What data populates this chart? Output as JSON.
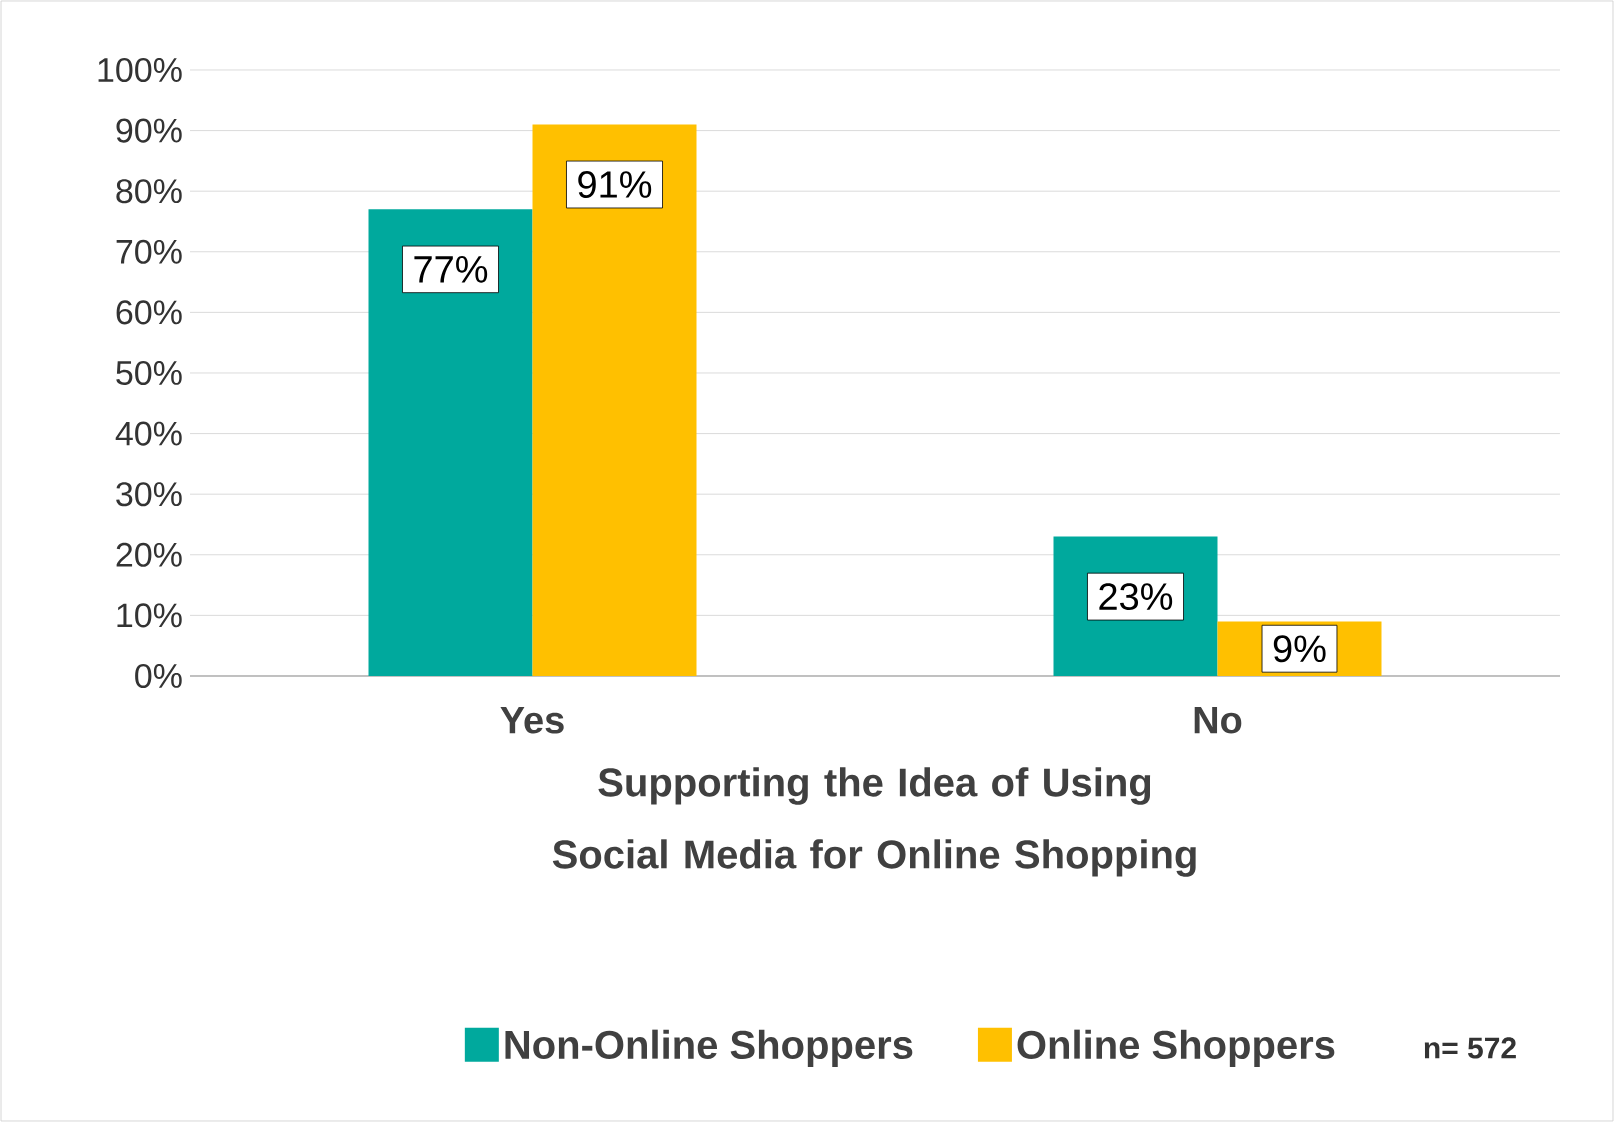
{
  "chart_data": {
    "type": "bar",
    "xlabel": "Supporting the Idea of Using Social Media for Online Shopping",
    "categories": [
      "Yes",
      "No"
    ],
    "series": [
      {
        "name": "Non-Online Shoppers",
        "color": "#00a99d",
        "values": [
          77,
          23
        ],
        "value_labels": [
          "77%",
          "23%"
        ]
      },
      {
        "name": "Online Shoppers",
        "color": "#ffc000",
        "values": [
          91,
          9
        ],
        "value_labels": [
          "91%",
          "9%"
        ]
      }
    ],
    "ylim": [
      0,
      100
    ],
    "yticks": [
      {
        "value": 0,
        "label": "0%"
      },
      {
        "value": 10,
        "label": "10%"
      },
      {
        "value": 20,
        "label": "20%"
      },
      {
        "value": 30,
        "label": "30%"
      },
      {
        "value": 40,
        "label": "40%"
      },
      {
        "value": 50,
        "label": "50%"
      },
      {
        "value": 60,
        "label": "60%"
      },
      {
        "value": 70,
        "label": "70%"
      },
      {
        "value": 80,
        "label": "80%"
      },
      {
        "value": 90,
        "label": "90%"
      },
      {
        "value": 100,
        "label": "100%"
      }
    ],
    "grid": "y",
    "legend": "bottom",
    "annotations": [
      "n= 572"
    ]
  }
}
